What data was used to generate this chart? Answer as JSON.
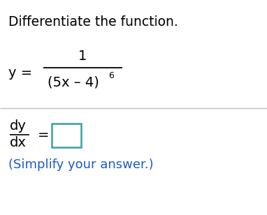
{
  "title": "Differentiate the function.",
  "title_fontsize": 13.5,
  "title_color": "#000000",
  "fraction_numerator": "1",
  "fraction_denominator": "(5x – 4)",
  "fraction_exponent": "6",
  "simplify_text": "(Simplify your answer.)",
  "simplify_color": "#1a5acd",
  "text_color": "#000000",
  "box_color": "#3a9ea5",
  "background_color": "#ffffff",
  "divider_color": "#c0c0c0",
  "main_fontsize": 14,
  "super_fontsize": 9,
  "dydx_fontsize": 14
}
